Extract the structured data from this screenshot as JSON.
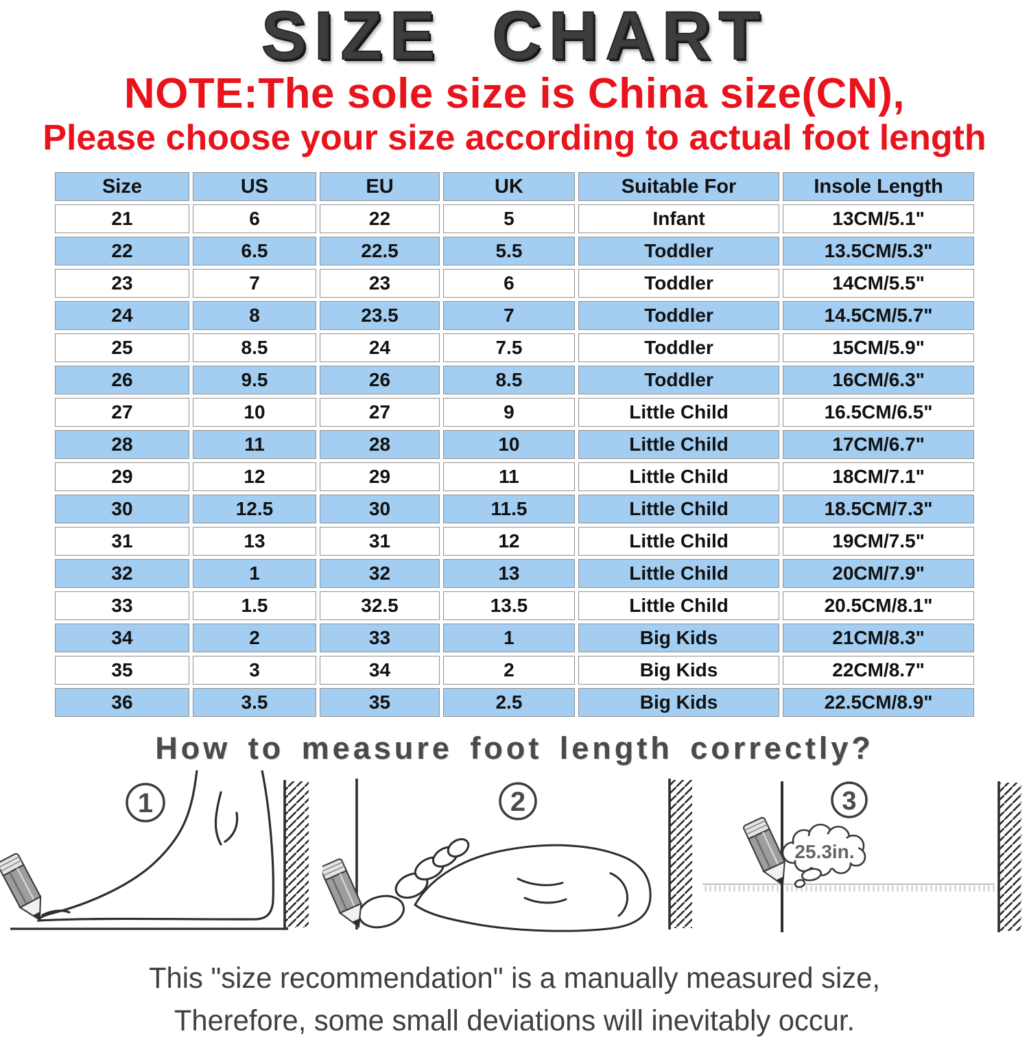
{
  "title": "SIZE CHART",
  "note": {
    "line1": "NOTE:The sole size is China size(CN),",
    "line2": "Please choose your size according to actual foot length"
  },
  "colors": {
    "table_blue": "#a3cef2",
    "note_red": "#e9131c",
    "title_gray": "#3d3d3d"
  },
  "chart_data": {
    "type": "table",
    "title": "SIZE CHART",
    "columns": [
      "Size",
      "US",
      "EU",
      "UK",
      "Suitable For",
      "Insole Length"
    ],
    "rows": [
      [
        "21",
        "6",
        "22",
        "5",
        "Infant",
        "13CM/5.1\""
      ],
      [
        "22",
        "6.5",
        "22.5",
        "5.5",
        "Toddler",
        "13.5CM/5.3\""
      ],
      [
        "23",
        "7",
        "23",
        "6",
        "Toddler",
        "14CM/5.5\""
      ],
      [
        "24",
        "8",
        "23.5",
        "7",
        "Toddler",
        "14.5CM/5.7\""
      ],
      [
        "25",
        "8.5",
        "24",
        "7.5",
        "Toddler",
        "15CM/5.9\""
      ],
      [
        "26",
        "9.5",
        "26",
        "8.5",
        "Toddler",
        "16CM/6.3\""
      ],
      [
        "27",
        "10",
        "27",
        "9",
        "Little Child",
        "16.5CM/6.5\""
      ],
      [
        "28",
        "11",
        "28",
        "10",
        "Little Child",
        "17CM/6.7\""
      ],
      [
        "29",
        "12",
        "29",
        "11",
        "Little Child",
        "18CM/7.1\""
      ],
      [
        "30",
        "12.5",
        "30",
        "11.5",
        "Little Child",
        "18.5CM/7.3\""
      ],
      [
        "31",
        "13",
        "31",
        "12",
        "Little Child",
        "19CM/7.5\""
      ],
      [
        "32",
        "1",
        "32",
        "13",
        "Little Child",
        "20CM/7.9\""
      ],
      [
        "33",
        "1.5",
        "32.5",
        "13.5",
        "Little Child",
        "20.5CM/8.1\""
      ],
      [
        "34",
        "2",
        "33",
        "1",
        "Big Kids",
        "21CM/8.3\""
      ],
      [
        "35",
        "3",
        "34",
        "2",
        "Big Kids",
        "22CM/8.7\""
      ],
      [
        "36",
        "3.5",
        "35",
        "2.5",
        "Big Kids",
        "22.5CM/8.9\""
      ]
    ],
    "header_bg": "#a3cef2",
    "alt_row_bg": "#a3cef2",
    "grid": true,
    "legend": "none"
  },
  "measure": {
    "heading": "How to measure foot length correctly?",
    "bubble_text": "25.3in.",
    "steps": [
      {
        "label": "1",
        "icon": "foot-side-profile-heel-to-wall-illustration"
      },
      {
        "label": "2",
        "icon": "foot-sole-between-lines-illustration"
      },
      {
        "label": "3",
        "icon": "ruler-measure-distance-illustration"
      }
    ]
  },
  "disclaimer": {
    "line1": "This \"size recommendation\" is a manually measured size,",
    "line2": "Therefore, some small deviations will inevitably occur."
  }
}
